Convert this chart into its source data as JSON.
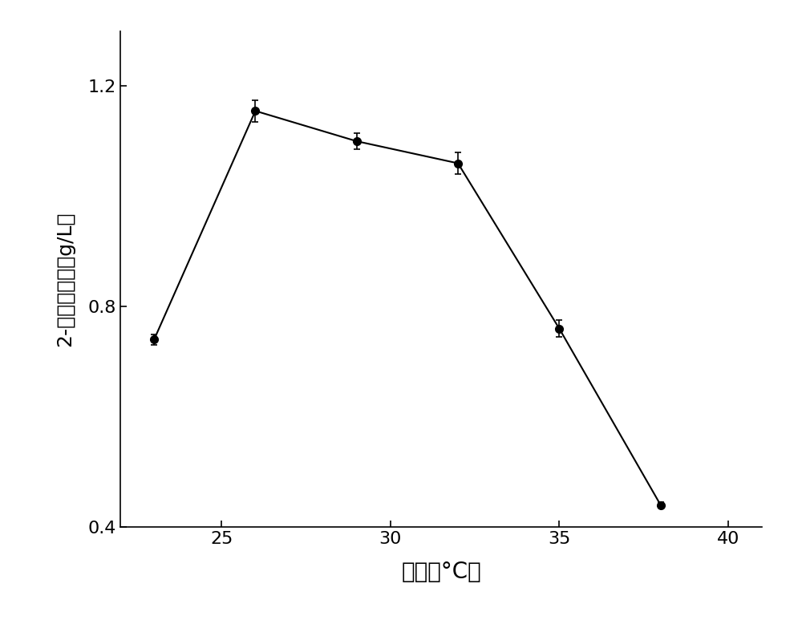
{
  "x": [
    23,
    26,
    29,
    32,
    35,
    38
  ],
  "y": [
    0.74,
    1.155,
    1.1,
    1.06,
    0.76,
    0.44
  ],
  "yerr": [
    0.01,
    0.02,
    0.015,
    0.02,
    0.015,
    0.005
  ],
  "xlabel": "温度（°C）",
  "ylabel": "2-苯乙醇含量（g/L）",
  "xlim": [
    22,
    41
  ],
  "ylim": [
    0.4,
    1.3
  ],
  "xticks": [
    25,
    30,
    35,
    40
  ],
  "yticks": [
    0.4,
    0.8,
    1.2
  ],
  "line_color": "black",
  "marker": "o",
  "marker_color": "black",
  "marker_size": 7,
  "line_width": 1.5,
  "background_color": "#ffffff",
  "xlabel_fontsize": 20,
  "ylabel_fontsize": 18,
  "tick_fontsize": 16
}
